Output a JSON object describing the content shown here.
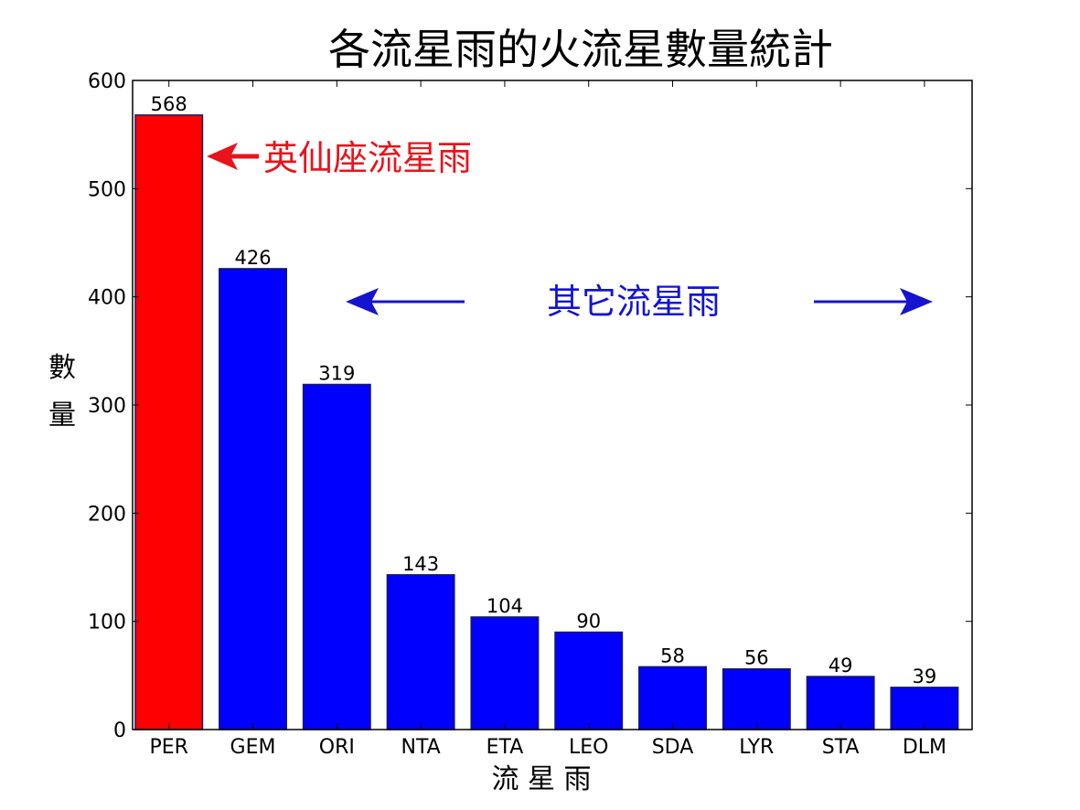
{
  "chart_data": {
    "type": "bar",
    "title": "各流星雨的火流星數量統計",
    "xlabel": "流 星 雨",
    "ylabel": "數量",
    "categories": [
      "PER",
      "GEM",
      "ORI",
      "NTA",
      "ETA",
      "LEO",
      "SDA",
      "LYR",
      "STA",
      "DLM"
    ],
    "values": [
      568,
      426,
      319,
      143,
      104,
      90,
      58,
      56,
      49,
      39
    ],
    "ylim": [
      0,
      600
    ],
    "yticks": [
      0,
      100,
      200,
      300,
      400,
      500,
      600
    ],
    "grid": false,
    "legend": "none",
    "colors": {
      "highlight": "#ff0000",
      "default": "#0000ff",
      "edge": "#1a1a5a",
      "annotation_red": "#e8141c",
      "annotation_blue": "#1414d0"
    },
    "highlight_index": 0,
    "annotations": [
      {
        "text": "英仙座流星雨",
        "color": "red",
        "arrow": "left"
      },
      {
        "text": "其它流星雨",
        "color": "blue",
        "arrow": "both"
      }
    ]
  }
}
